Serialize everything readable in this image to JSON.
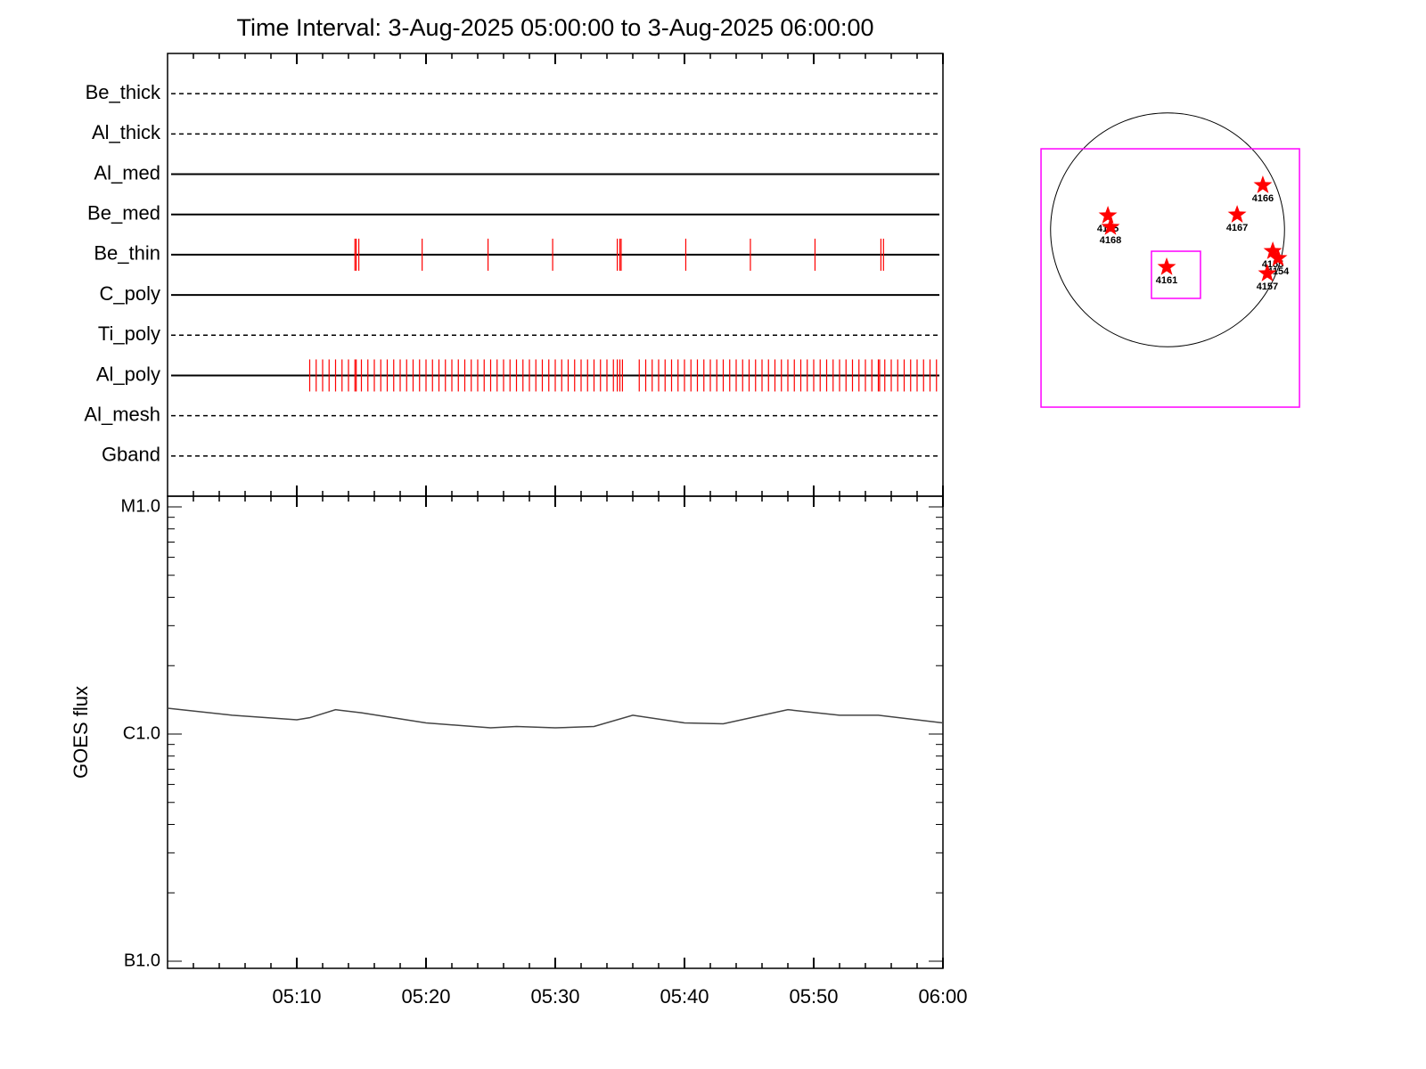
{
  "chart_data": [
    {
      "type": "timeline",
      "title": "Time Interval:  3-Aug-2025 05:00:00 to  3-Aug-2025 06:00:00",
      "color": "#ff0000",
      "rows": [
        {
          "name": "Be_thick",
          "style": "dashed",
          "times": []
        },
        {
          "name": "Al_thick",
          "style": "dashed",
          "times": []
        },
        {
          "name": "Al_med",
          "style": "solid",
          "times": []
        },
        {
          "name": "Be_med",
          "style": "solid",
          "times": []
        },
        {
          "name": "Be_thin",
          "style": "solid",
          "times": [
            14.5,
            14.6,
            14.8,
            19.7,
            24.8,
            29.8,
            34.8,
            35.0,
            35.1,
            40.1,
            45.1,
            50.1,
            55.2,
            55.4
          ]
        },
        {
          "name": "C_poly",
          "style": "solid",
          "times": []
        },
        {
          "name": "Ti_poly",
          "style": "dashed",
          "times": []
        },
        {
          "name": "Al_poly",
          "style": "solid",
          "times": [
            11,
            11.5,
            12,
            12.5,
            13,
            13.5,
            14,
            14.5,
            14.6,
            15,
            15.5,
            16,
            16.5,
            17,
            17.5,
            18,
            18.5,
            19,
            19.5,
            20,
            20.5,
            21,
            21.5,
            22,
            22.5,
            23,
            23.5,
            24,
            24.5,
            25,
            25.5,
            26,
            26.5,
            27,
            27.5,
            28,
            28.5,
            29,
            29.5,
            30,
            30.5,
            31,
            31.5,
            32,
            32.5,
            33,
            33.5,
            34,
            34.5,
            34.8,
            35,
            35.2,
            36.5,
            37,
            37.5,
            38,
            38.5,
            39,
            39.5,
            40,
            40.5,
            41,
            41.5,
            42,
            42.5,
            43,
            43.5,
            44,
            44.5,
            45,
            45.5,
            46,
            46.5,
            47,
            47.5,
            48,
            48.5,
            49,
            49.5,
            50,
            50.5,
            51,
            51.5,
            52,
            52.5,
            53,
            53.5,
            54,
            54.5,
            55,
            55.1,
            55.5,
            56,
            56.5,
            57,
            57.5,
            58,
            58.5,
            59,
            59.5
          ]
        },
        {
          "name": "Al_mesh",
          "style": "dashed",
          "times": []
        },
        {
          "name": "Gband",
          "style": "dashed",
          "times": []
        }
      ]
    },
    {
      "type": "line",
      "ylabel": "GOES flux",
      "log_y": true,
      "color": "#444444",
      "x": [
        0,
        5,
        10,
        11,
        13,
        15,
        20,
        25,
        27,
        30,
        33,
        36,
        40,
        43,
        48,
        52,
        55,
        60
      ],
      "values": [
        1.3e-06,
        1.21e-06,
        1.155e-06,
        1.18e-06,
        1.28e-06,
        1.24e-06,
        1.12e-06,
        1.065e-06,
        1.08e-06,
        1.065e-06,
        1.08e-06,
        1.21e-06,
        1.12e-06,
        1.11e-06,
        1.28e-06,
        1.21e-06,
        1.21e-06,
        1.12e-06
      ],
      "xlim": [
        0,
        60
      ],
      "xticks": [
        {
          "value": 10,
          "label": "05:10"
        },
        {
          "value": 20,
          "label": "05:20"
        },
        {
          "value": 30,
          "label": "05:30"
        },
        {
          "value": 40,
          "label": "05:40"
        },
        {
          "value": 50,
          "label": "05:50"
        },
        {
          "value": 60,
          "label": "06:00"
        }
      ],
      "xminorticks": [
        2,
        4,
        6,
        8,
        12,
        14,
        16,
        18,
        22,
        24,
        26,
        28,
        32,
        34,
        36,
        38,
        42,
        44,
        46,
        48,
        52,
        54,
        56,
        58
      ],
      "ylim": [
        1e-07,
        1e-05
      ],
      "yticks": [
        {
          "value": 1e-07,
          "label": "B1.0"
        },
        {
          "value": 1e-06,
          "label": "C1.0"
        },
        {
          "value": 1e-05,
          "label": "M1.0"
        }
      ],
      "yminorticks": [
        2e-07,
        3e-07,
        4e-07,
        5e-07,
        6e-07,
        7e-07,
        8e-07,
        9e-07,
        2e-06,
        3e-06,
        4e-06,
        5e-06,
        6e-06,
        7e-06,
        8e-06,
        9e-06
      ]
    },
    {
      "type": "map",
      "solar_radius": 945,
      "color": "#ff0000",
      "box_color": "#ff00ff",
      "fov_boxes": [
        [
          -1022,
          1066,
          -1433,
          655
        ],
        [
          -130,
          266,
          -554,
          -173
        ]
      ],
      "regions": [
        {
          "label": "4165",
          "x": -482,
          "y": 115
        },
        {
          "label": "4168",
          "x": -461,
          "y": 22
        },
        {
          "label": "4166",
          "x": 770,
          "y": 360
        },
        {
          "label": "4167",
          "x": 562,
          "y": 122
        },
        {
          "label": "4161",
          "x": -7,
          "y": -302
        },
        {
          "label": "4155",
          "x": 850,
          "y": -173
        },
        {
          "label": "4154",
          "x": 893,
          "y": -230
        },
        {
          "label": "4157",
          "x": 806,
          "y": -353
        }
      ]
    }
  ]
}
